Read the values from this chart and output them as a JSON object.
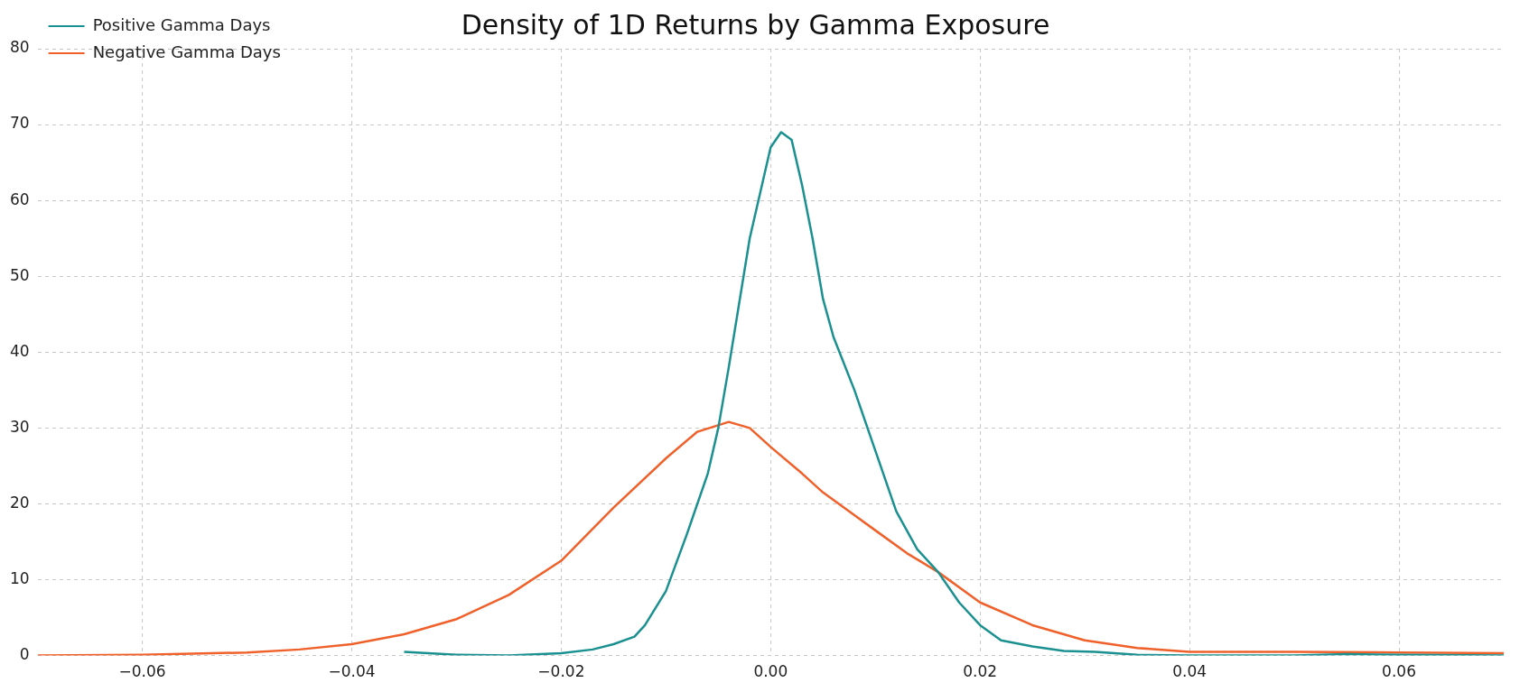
{
  "chart_data": {
    "type": "line",
    "title": "Density of 1D Returns by Gamma Exposure",
    "legend": "top left",
    "grid": true,
    "marker": "none",
    "line_style": "solid",
    "xlim": [
      -0.07,
      0.07
    ],
    "ylim": [
      0,
      80
    ],
    "xticks": [
      {
        "value": -0.06,
        "label": "−0.06"
      },
      {
        "value": -0.04,
        "label": "−0.04"
      },
      {
        "value": -0.02,
        "label": "−0.02"
      },
      {
        "value": 0,
        "label": "0.00"
      },
      {
        "value": 0.02,
        "label": "0.02"
      },
      {
        "value": 0.04,
        "label": "0.04"
      },
      {
        "value": 0.06,
        "label": "0.06"
      }
    ],
    "yticks": [
      0,
      10,
      20,
      30,
      40,
      50,
      60,
      70,
      80
    ],
    "series": [
      {
        "name": "Positive Gamma Days",
        "color": "#1a9090",
        "x": [
          -0.035,
          -0.03,
          -0.025,
          -0.02,
          -0.017,
          -0.015,
          -0.013,
          -0.012,
          -0.01,
          -0.008,
          -0.006,
          -0.005,
          -0.004,
          -0.002,
          0,
          0.001,
          0.002,
          0.003,
          0.004,
          0.005,
          0.006,
          0.008,
          0.01,
          0.012,
          0.014,
          0.016,
          0.018,
          0.02,
          0.022,
          0.025,
          0.028,
          0.031,
          0.035,
          0.04,
          0.05,
          0.055,
          0.06,
          0.07
        ],
        "values": [
          0.5,
          0.1,
          0,
          0.3,
          0.8,
          1.5,
          2.5,
          4,
          8.5,
          16,
          24,
          30,
          38,
          55,
          67,
          69,
          68,
          62,
          55,
          47,
          42,
          35,
          27,
          19,
          14,
          11,
          7,
          4,
          2,
          1.2,
          0.6,
          0.5,
          0.1,
          0,
          0,
          0.2,
          0.1,
          0
        ]
      },
      {
        "name": "Negative Gamma Days",
        "color": "#f0602a",
        "x": [
          -0.07,
          -0.06,
          -0.05,
          -0.045,
          -0.04,
          -0.035,
          -0.03,
          -0.025,
          -0.02,
          -0.015,
          -0.01,
          -0.007,
          -0.004,
          -0.002,
          0,
          0.003,
          0.005,
          0.008,
          0.01,
          0.013,
          0.016,
          0.02,
          0.025,
          0.03,
          0.035,
          0.04,
          0.05,
          0.06,
          0.07
        ],
        "values": [
          0,
          0.1,
          0.4,
          0.8,
          1.5,
          2.8,
          4.8,
          8,
          12.5,
          19.5,
          26,
          29.5,
          30.8,
          30,
          27.5,
          24,
          21.5,
          18.5,
          16.5,
          13.5,
          11,
          7,
          4,
          2,
          1,
          0.5,
          0.5,
          0.4,
          0.3
        ]
      }
    ]
  }
}
